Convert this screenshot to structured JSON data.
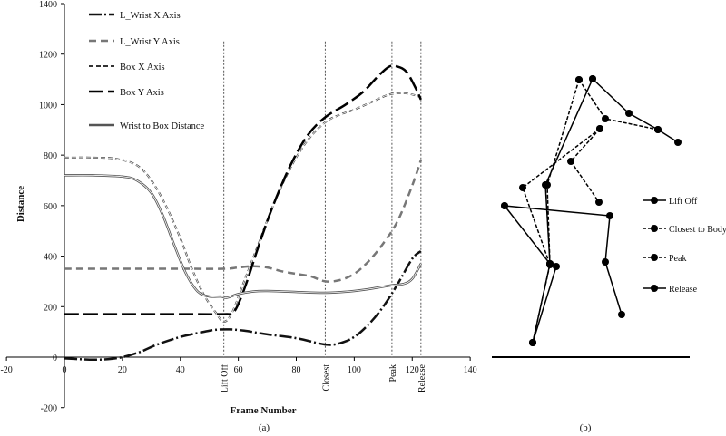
{
  "chart_data": {
    "type": "line",
    "xlabel": "Frame Number",
    "ylabel": "Distance",
    "xlim": [
      -20,
      140
    ],
    "ylim": [
      -200,
      1400
    ],
    "xticks": [
      -20,
      0,
      20,
      40,
      60,
      80,
      100,
      120,
      140
    ],
    "yticks": [
      -200,
      0,
      200,
      400,
      600,
      800,
      1000,
      1200,
      1400
    ],
    "events": [
      {
        "label": "Lift Off",
        "x": 55
      },
      {
        "label": "Closest",
        "x": 90
      },
      {
        "label": "Peak",
        "x": 113
      },
      {
        "label": "Release",
        "x": 123
      }
    ],
    "series": [
      {
        "name": "L_Wrist X Axis",
        "color": "#111111",
        "x": [
          0,
          5,
          10,
          15,
          20,
          26,
          32,
          40,
          48,
          52,
          57,
          62,
          70,
          80,
          90,
          95,
          100,
          105,
          110,
          115,
          120,
          123
        ],
        "y": [
          -5,
          -8,
          -10,
          -8,
          0,
          20,
          50,
          80,
          100,
          108,
          110,
          105,
          90,
          75,
          50,
          55,
          80,
          130,
          200,
          290,
          390,
          420
        ]
      },
      {
        "name": "L_Wrist Y Axis",
        "color": "#777777",
        "x": [
          0,
          20,
          40,
          55,
          60,
          65,
          70,
          75,
          80,
          85,
          90,
          95,
          100,
          105,
          110,
          115,
          120,
          123
        ],
        "y": [
          350,
          350,
          350,
          350,
          355,
          360,
          355,
          340,
          330,
          320,
          300,
          305,
          330,
          380,
          450,
          540,
          680,
          780
        ]
      },
      {
        "name": "Box X Axis",
        "color": "#333333",
        "x": [
          0,
          10,
          18,
          25,
          30,
          35,
          40,
          44,
          48,
          52,
          55,
          58,
          62,
          67,
          72,
          78,
          84,
          90,
          95,
          100,
          106,
          112,
          117,
          120,
          123
        ],
        "y": [
          790,
          790,
          785,
          760,
          700,
          600,
          470,
          350,
          250,
          180,
          140,
          180,
          300,
          450,
          600,
          750,
          860,
          930,
          960,
          980,
          1010,
          1040,
          1045,
          1040,
          1030
        ]
      },
      {
        "name": "Box Y Axis",
        "color": "#000000",
        "x": [
          0,
          20,
          40,
          55,
          58,
          60,
          63,
          67,
          72,
          78,
          84,
          90,
          97,
          103,
          108,
          112,
          115,
          118,
          121,
          123
        ],
        "y": [
          170,
          170,
          170,
          170,
          175,
          210,
          300,
          440,
          600,
          760,
          880,
          950,
          1000,
          1050,
          1110,
          1150,
          1150,
          1130,
          1070,
          1020
        ]
      },
      {
        "name": "Wrist to Box Distance",
        "color": "#555555",
        "x": [
          0,
          10,
          20,
          25,
          30,
          34,
          38,
          42,
          46,
          50,
          54,
          56,
          60,
          65,
          70,
          80,
          90,
          100,
          108,
          113,
          117,
          120,
          123
        ],
        "y": [
          720,
          720,
          715,
          700,
          650,
          560,
          440,
          330,
          260,
          240,
          240,
          235,
          250,
          260,
          262,
          258,
          255,
          262,
          275,
          285,
          290,
          310,
          370
        ]
      }
    ],
    "legend": [
      "L_Wrist X Axis",
      "L_Wrist Y Axis",
      "Box X Axis",
      "Box Y Axis",
      "Wrist to Box Distance"
    ],
    "caption": "(a)"
  },
  "figure_b": {
    "legend": [
      "Lift Off",
      "Closest to Body",
      "Peak",
      "Release"
    ],
    "caption": "(b)"
  }
}
